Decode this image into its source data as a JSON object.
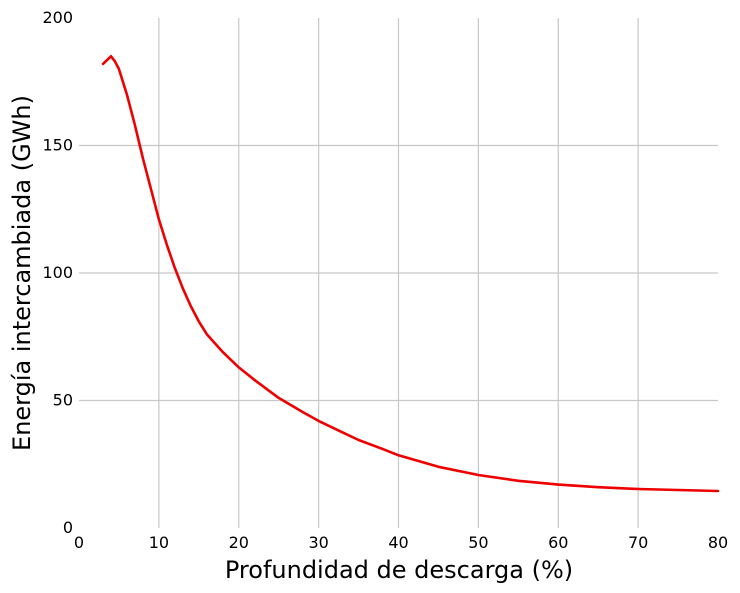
{
  "chart_data": {
    "type": "line",
    "title": "",
    "xlabel": "Profundidad de descarga (%)",
    "ylabel": "Energía intercambiada (GWh)",
    "xlim": [
      0,
      80
    ],
    "ylim": [
      0,
      200
    ],
    "xticks": [
      "0",
      "10",
      "20",
      "30",
      "40",
      "50",
      "60",
      "70",
      "80"
    ],
    "yticks": [
      "0",
      "50",
      "100",
      "150",
      "200"
    ],
    "grid": true,
    "colors": {
      "line": "#ee0000",
      "grid": "#c8c8c8"
    },
    "series": [
      {
        "x": [
          3,
          4,
          4.5,
          5,
          6,
          7,
          8,
          9,
          10,
          11,
          12,
          13,
          14,
          15,
          16,
          18,
          20,
          22,
          25,
          28,
          30,
          33,
          35,
          38,
          40,
          45,
          50,
          55,
          60,
          65,
          70,
          75,
          80
        ],
        "y": [
          182,
          185,
          183,
          180,
          170,
          158,
          145,
          133,
          121,
          111,
          102,
          94,
          87,
          81,
          76,
          69,
          63,
          58,
          51,
          45.5,
          42,
          37.5,
          34.5,
          31,
          28.5,
          24,
          20.8,
          18.5,
          17,
          16,
          15.3,
          14.9,
          14.5
        ]
      }
    ]
  }
}
